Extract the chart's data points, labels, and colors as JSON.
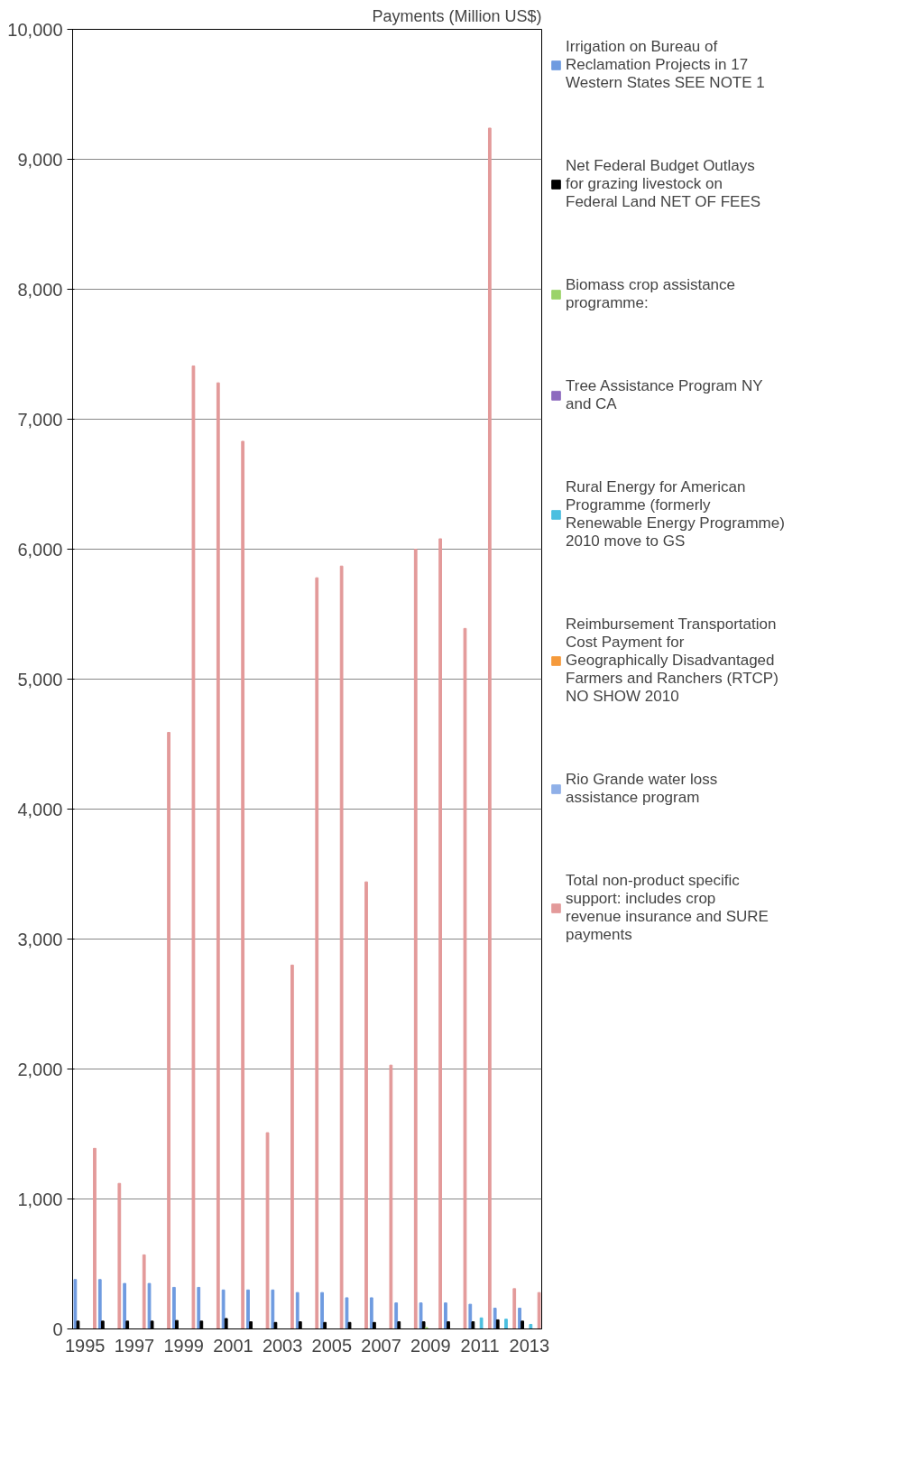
{
  "chart_data": {
    "type": "bar",
    "title": "Payments (Million US$)",
    "categories": [
      "1995",
      null,
      "1997",
      null,
      "1999",
      null,
      "2001",
      null,
      "2003",
      null,
      "2005",
      null,
      "2007",
      null,
      "2009",
      null,
      "2011",
      null,
      "2013"
    ],
    "series": [
      {
        "name": "Irrigation on Bureau of Reclamation Projects in 17 Western States SEE NOTE 1",
        "color": "#6f9be0",
        "values": [
          380,
          380,
          350,
          350,
          320,
          320,
          300,
          300,
          300,
          280,
          280,
          240,
          240,
          200,
          200,
          200,
          190,
          160,
          160
        ]
      },
      {
        "name": "Net Federal Budget Outlays for grazing livestock on Federal Land NET OF FEES",
        "color": "#000000",
        "values": [
          60,
          60,
          60,
          60,
          65,
          60,
          80,
          55,
          50,
          55,
          50,
          50,
          50,
          55,
          55,
          55,
          55,
          70,
          60
        ]
      },
      {
        "name": "Biomass crop assistance programme:",
        "color": "#9bd36a",
        "values": [
          null,
          null,
          null,
          null,
          null,
          null,
          null,
          null,
          null,
          null,
          null,
          null,
          null,
          null,
          10,
          null,
          null,
          null,
          null
        ]
      },
      {
        "name": "Tree Assistance Program NY and CA",
        "color": "#8e6bbf",
        "values": [
          null,
          null,
          null,
          null,
          null,
          null,
          null,
          null,
          null,
          null,
          null,
          null,
          null,
          null,
          null,
          null,
          null,
          null,
          null
        ]
      },
      {
        "name": "Rural Energy for American Programme (formerly Renewable Energy Programme) 2010 move to GS",
        "color": "#4bbfe0",
        "values": [
          null,
          null,
          null,
          null,
          null,
          null,
          null,
          null,
          null,
          null,
          null,
          null,
          null,
          null,
          null,
          null,
          85,
          75,
          35
        ]
      },
      {
        "name": "Reimbursement Transportation Cost Payment for Geographically Disadvantaged Farmers and Ranchers (RTCP) NO SHOW 2010",
        "color": "#f59a3c",
        "values": [
          null,
          null,
          null,
          null,
          null,
          null,
          null,
          null,
          null,
          null,
          null,
          null,
          null,
          null,
          null,
          null,
          null,
          null,
          null
        ]
      },
      {
        "name": "Rio Grande water loss assistance program",
        "color": "#8fb0e8",
        "values": [
          null,
          null,
          null,
          null,
          null,
          null,
          null,
          null,
          null,
          null,
          null,
          null,
          null,
          null,
          null,
          null,
          null,
          null,
          null
        ]
      },
      {
        "name": "Total non-product specific support: includes crop revenue insurance and SURE payments",
        "color": "#e39a9a",
        "values": [
          1390,
          1120,
          570,
          4590,
          7410,
          7280,
          6830,
          1510,
          2800,
          5780,
          5870,
          3440,
          2030,
          6000,
          6080,
          5390,
          9240,
          310,
          280
        ]
      }
    ],
    "ylim": [
      0,
      10000
    ],
    "yticks": [
      0,
      {
        "value": 1000,
        "label": "1,000"
      },
      {
        "value": 2000,
        "label": "2,000"
      },
      {
        "value": 3000,
        "label": "3,000"
      },
      {
        "value": 4000,
        "label": "4,000"
      },
      {
        "value": 5000,
        "label": "5,000"
      },
      {
        "value": 6000,
        "label": "6,000"
      },
      {
        "value": 7000,
        "label": "7,000"
      },
      {
        "value": 8000,
        "label": "8,000"
      },
      {
        "value": 9000,
        "label": "9,000"
      },
      {
        "value": 10000,
        "label": "10,000"
      }
    ],
    "grid": "y",
    "legend": "right"
  }
}
